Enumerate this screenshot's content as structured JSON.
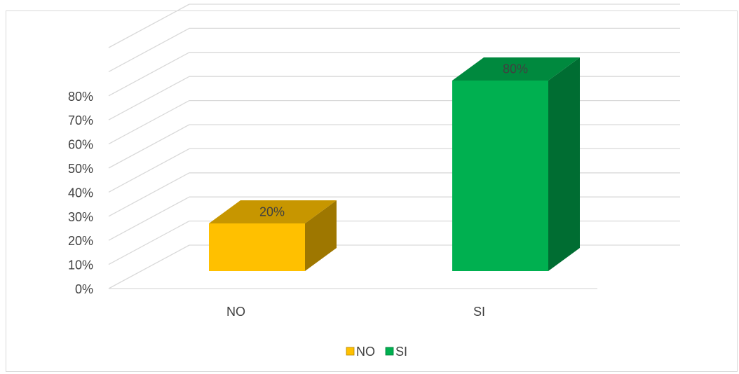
{
  "chart_data": {
    "type": "bar",
    "title": "",
    "xlabel": "",
    "ylabel": "",
    "categories": [
      "NO",
      "SI"
    ],
    "values": [
      0.2,
      0.8
    ],
    "data_labels": [
      "20%",
      "80%"
    ],
    "colors": [
      "#FFC000",
      "#00B050"
    ],
    "y_ticks": [
      "0%",
      "10%",
      "20%",
      "30%",
      "40%",
      "50%",
      "60%",
      "70%",
      "80%"
    ],
    "ylim": [
      0,
      1
    ],
    "grid": true,
    "three_d": true,
    "legend": {
      "position": "bottom",
      "entries": [
        {
          "label": "NO",
          "color": "#FFC000"
        },
        {
          "label": "SI",
          "color": "#00B050"
        }
      ]
    }
  }
}
